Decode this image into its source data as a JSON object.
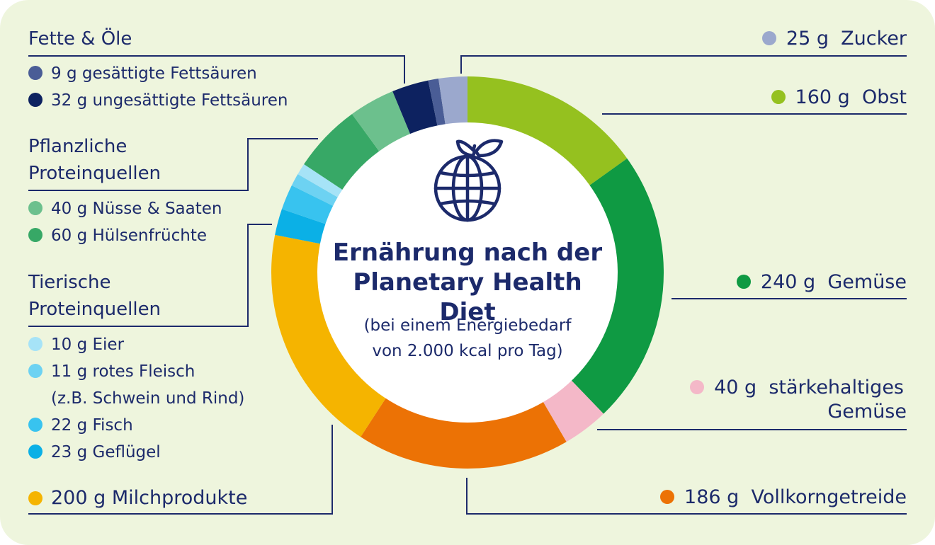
{
  "chart_data": {
    "type": "pie",
    "variant": "donut",
    "title": "Ernährung nach der Planetary Health Diet",
    "subtitle": "(bei einem Energiebedarf von 2.000 kcal pro Tag)",
    "subtitle_lines": [
      "(bei einem Energiebedarf",
      "von 2.000 kcal pro Tag)"
    ],
    "unit": "g",
    "categories": {
      "fats": "Fette & Öle",
      "plant_protein": [
        "Pflanzliche",
        "Proteinquellen"
      ],
      "animal_protein": [
        "Tierische",
        "Proteinquellen"
      ]
    },
    "slices": [
      {
        "key": "obst",
        "label": "Obst",
        "value": 160,
        "display_value": "160 g",
        "color": "#95c11f"
      },
      {
        "key": "gemuese",
        "label": "Gemüse",
        "value": 240,
        "display_value": "240 g",
        "color": "#0f9a43"
      },
      {
        "key": "staerke",
        "label": "stärkehaltiges Gemüse",
        "label_lines": [
          "stärkehaltiges",
          "Gemüse"
        ],
        "value": 40,
        "display_value": "40 g",
        "color": "#f4b8c8"
      },
      {
        "key": "vollkorn",
        "label": "Vollkorngetreide",
        "value": 186,
        "display_value": "186 g",
        "color": "#ec7205"
      },
      {
        "key": "milch",
        "label": "Milchprodukte",
        "value": 200,
        "display_value": "200 g",
        "color": "#f5b400"
      },
      {
        "key": "gefluegel",
        "label": "Geflügel",
        "value": 23,
        "display_value": "23 g",
        "color": "#0bb0e6"
      },
      {
        "key": "fisch",
        "label": "Fisch",
        "value": 22,
        "display_value": "22 g",
        "color": "#38c3ef"
      },
      {
        "key": "fleisch",
        "label": "rotes Fleisch",
        "sub_label": "(z.B. Schwein und Rind)",
        "value": 11,
        "display_value": "11 g",
        "color": "#6dd2f2"
      },
      {
        "key": "eier",
        "label": "Eier",
        "value": 10,
        "display_value": "10 g",
        "color": "#a6e3f7"
      },
      {
        "key": "huelsen",
        "label": "Hülsenfrüchte",
        "value": 60,
        "display_value": "60 g",
        "color": "#37a866"
      },
      {
        "key": "nuesse",
        "label": "Nüsse & Saaten",
        "value": 40,
        "display_value": "40 g",
        "color": "#6cc08d"
      },
      {
        "key": "unges",
        "label": "ungesättigte Fettsäuren",
        "value": 32,
        "display_value": "32 g",
        "color": "#0d2260"
      },
      {
        "key": "ges",
        "label": "gesättigte Fettsäuren",
        "value": 9,
        "display_value": "9 g",
        "color": "#4a5d96"
      },
      {
        "key": "zucker",
        "label": "Zucker",
        "value": 25,
        "display_value": "25 g",
        "color": "#9ba8cd"
      }
    ]
  }
}
